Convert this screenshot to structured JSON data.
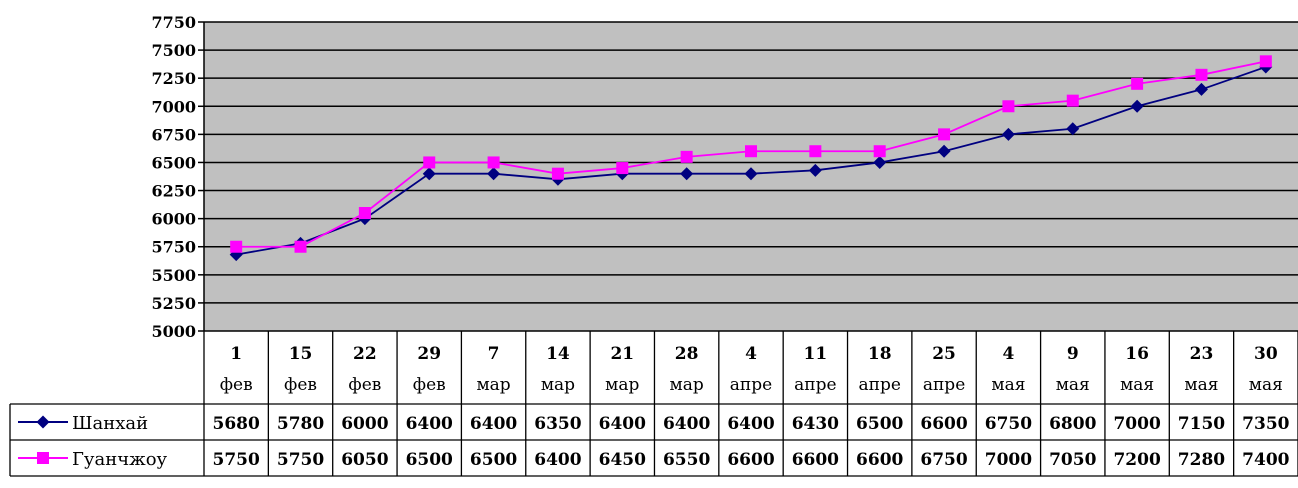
{
  "chart_data": {
    "type": "line",
    "title": "",
    "xlabel": "",
    "ylabel": "",
    "ylim": [
      5000,
      7750
    ],
    "yticks": [
      5000,
      5250,
      5500,
      5750,
      6000,
      6250,
      6500,
      6750,
      7000,
      7250,
      7500,
      7750
    ],
    "grid": true,
    "plot_background": "#c0c0c0",
    "legend_placement": "data-table",
    "categories": [
      {
        "day": "1",
        "month": "фев"
      },
      {
        "day": "15",
        "month": "фев"
      },
      {
        "day": "22",
        "month": "фев"
      },
      {
        "day": "29",
        "month": "фев"
      },
      {
        "day": "7",
        "month": "мар"
      },
      {
        "day": "14",
        "month": "мар"
      },
      {
        "day": "21",
        "month": "мар"
      },
      {
        "day": "28",
        "month": "мар"
      },
      {
        "day": "4",
        "month": "апре"
      },
      {
        "day": "11",
        "month": "апре"
      },
      {
        "day": "18",
        "month": "апре"
      },
      {
        "day": "25",
        "month": "апре"
      },
      {
        "day": "4",
        "month": "мая"
      },
      {
        "day": "9",
        "month": "мая"
      },
      {
        "day": "16",
        "month": "мая"
      },
      {
        "day": "23",
        "month": "мая"
      },
      {
        "day": "30",
        "month": "мая"
      }
    ],
    "series": [
      {
        "name": "Шанхай",
        "color": "#000080",
        "marker": "diamond",
        "values": [
          5680,
          5780,
          6000,
          6400,
          6400,
          6350,
          6400,
          6400,
          6400,
          6430,
          6500,
          6600,
          6750,
          6800,
          7000,
          7150,
          7350
        ]
      },
      {
        "name": "Гуанчжоу",
        "color": "#ff00ff",
        "marker": "square",
        "values": [
          5750,
          5750,
          6050,
          6500,
          6500,
          6400,
          6450,
          6550,
          6600,
          6600,
          6600,
          6750,
          7000,
          7050,
          7200,
          7280,
          7400
        ]
      }
    ]
  }
}
